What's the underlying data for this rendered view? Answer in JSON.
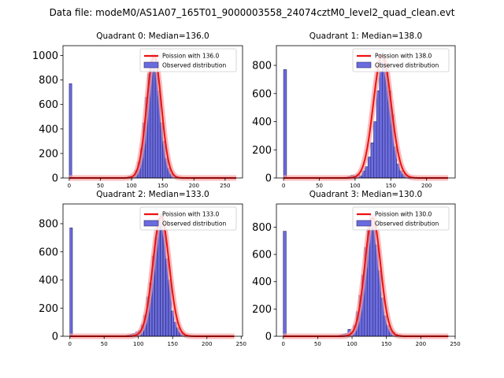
{
  "figure_title": "Data file: modeM0/AS1A07_165T01_9000003558_24074cztM0_level2_quad_clean.evt",
  "colors": {
    "bar_fill": "#6b6be0",
    "bar_edge": "#2a2a6a",
    "curve": "#ee1111",
    "curve_halo": "#f5a0a0"
  },
  "chart_data": [
    {
      "type": "bar",
      "title": "Quadrant 0: Median=136.0",
      "median": 136.0,
      "xlim": [
        -10,
        278
      ],
      "ylim": [
        0,
        1080
      ],
      "xticks": [
        0,
        50,
        100,
        150,
        200,
        250
      ],
      "yticks": [
        0,
        200,
        400,
        600,
        800,
        1000
      ],
      "legend": [
        "Poission with 136.0",
        "Observed distribution"
      ],
      "legend_position": "top-right",
      "bin_width": 4.1,
      "bins": [
        0,
        90,
        94,
        98,
        102,
        106,
        110,
        114,
        118,
        122,
        126,
        130,
        134,
        138,
        142,
        146,
        150,
        154,
        158,
        162,
        166,
        170
      ],
      "counts": [
        770,
        5,
        12,
        15,
        20,
        60,
        130,
        240,
        450,
        660,
        850,
        950,
        1000,
        860,
        710,
        450,
        300,
        160,
        80,
        35,
        15,
        5
      ],
      "curve_peak": 1000,
      "curve_sigma": 11.7,
      "curve_range": [
        0,
        268
      ]
    },
    {
      "type": "bar",
      "title": "Quadrant 1: Median=138.0",
      "median": 138.0,
      "xlim": [
        -10,
        240
      ],
      "ylim": [
        0,
        940
      ],
      "xticks": [
        0,
        50,
        100,
        150,
        200
      ],
      "yticks": [
        0,
        200,
        400,
        600,
        800
      ],
      "legend": [
        "Poission with 138.0",
        "Observed distribution"
      ],
      "legend_position": "top-right",
      "bin_width": 4.2,
      "bins": [
        0,
        86,
        90,
        94,
        98,
        102,
        106,
        110,
        114,
        118,
        122,
        126,
        130,
        134,
        138,
        142,
        146,
        150,
        154,
        158,
        162,
        166,
        170,
        174,
        178
      ],
      "counts": [
        770,
        5,
        10,
        20,
        15,
        25,
        15,
        50,
        80,
        150,
        250,
        400,
        620,
        760,
        880,
        780,
        620,
        450,
        220,
        100,
        50,
        30,
        15,
        10,
        5
      ],
      "curve_peak": 870,
      "curve_sigma": 12.5,
      "curve_range": [
        0,
        230
      ]
    },
    {
      "type": "bar",
      "title": "Quadrant 2: Median=133.0",
      "median": 133.0,
      "xlim": [
        -10,
        252
      ],
      "ylim": [
        0,
        940
      ],
      "xticks": [
        0,
        50,
        100,
        150,
        200,
        250
      ],
      "yticks": [
        0,
        200,
        400,
        600,
        800
      ],
      "legend": [
        "Poission with 133.0",
        "Observed distribution"
      ],
      "legend_position": "top-right",
      "bin_width": 3.8,
      "bins": [
        0,
        80,
        84,
        88,
        92,
        96,
        100,
        104,
        108,
        112,
        116,
        120,
        124,
        128,
        132,
        136,
        140,
        144,
        148,
        152,
        156,
        160,
        164,
        168,
        172
      ],
      "counts": [
        770,
        5,
        10,
        15,
        20,
        30,
        40,
        80,
        150,
        280,
        380,
        570,
        700,
        820,
        870,
        750,
        550,
        400,
        180,
        100,
        60,
        30,
        20,
        10,
        5
      ],
      "curve_peak": 850,
      "curve_sigma": 11.9,
      "curve_range": [
        0,
        240
      ]
    },
    {
      "type": "bar",
      "title": "Quadrant 3: Median=130.0",
      "median": 130.0,
      "xlim": [
        -10,
        250
      ],
      "ylim": [
        0,
        970
      ],
      "xticks": [
        0,
        50,
        100,
        150,
        200,
        250
      ],
      "yticks": [
        0,
        200,
        400,
        600,
        800
      ],
      "legend": [
        "Poission with 130.0",
        "Observed distribution"
      ],
      "legend_position": "top-right",
      "bin_width": 4.2,
      "bins": [
        0,
        78,
        82,
        86,
        90,
        94,
        98,
        102,
        106,
        110,
        114,
        118,
        122,
        126,
        130,
        134,
        138,
        142,
        146,
        150,
        154,
        158,
        162,
        166,
        170
      ],
      "counts": [
        770,
        5,
        10,
        15,
        20,
        50,
        20,
        80,
        180,
        300,
        450,
        650,
        800,
        890,
        840,
        670,
        480,
        280,
        150,
        80,
        50,
        30,
        15,
        10,
        5
      ],
      "curve_peak": 870,
      "curve_sigma": 11.4,
      "curve_range": [
        0,
        240
      ]
    }
  ]
}
